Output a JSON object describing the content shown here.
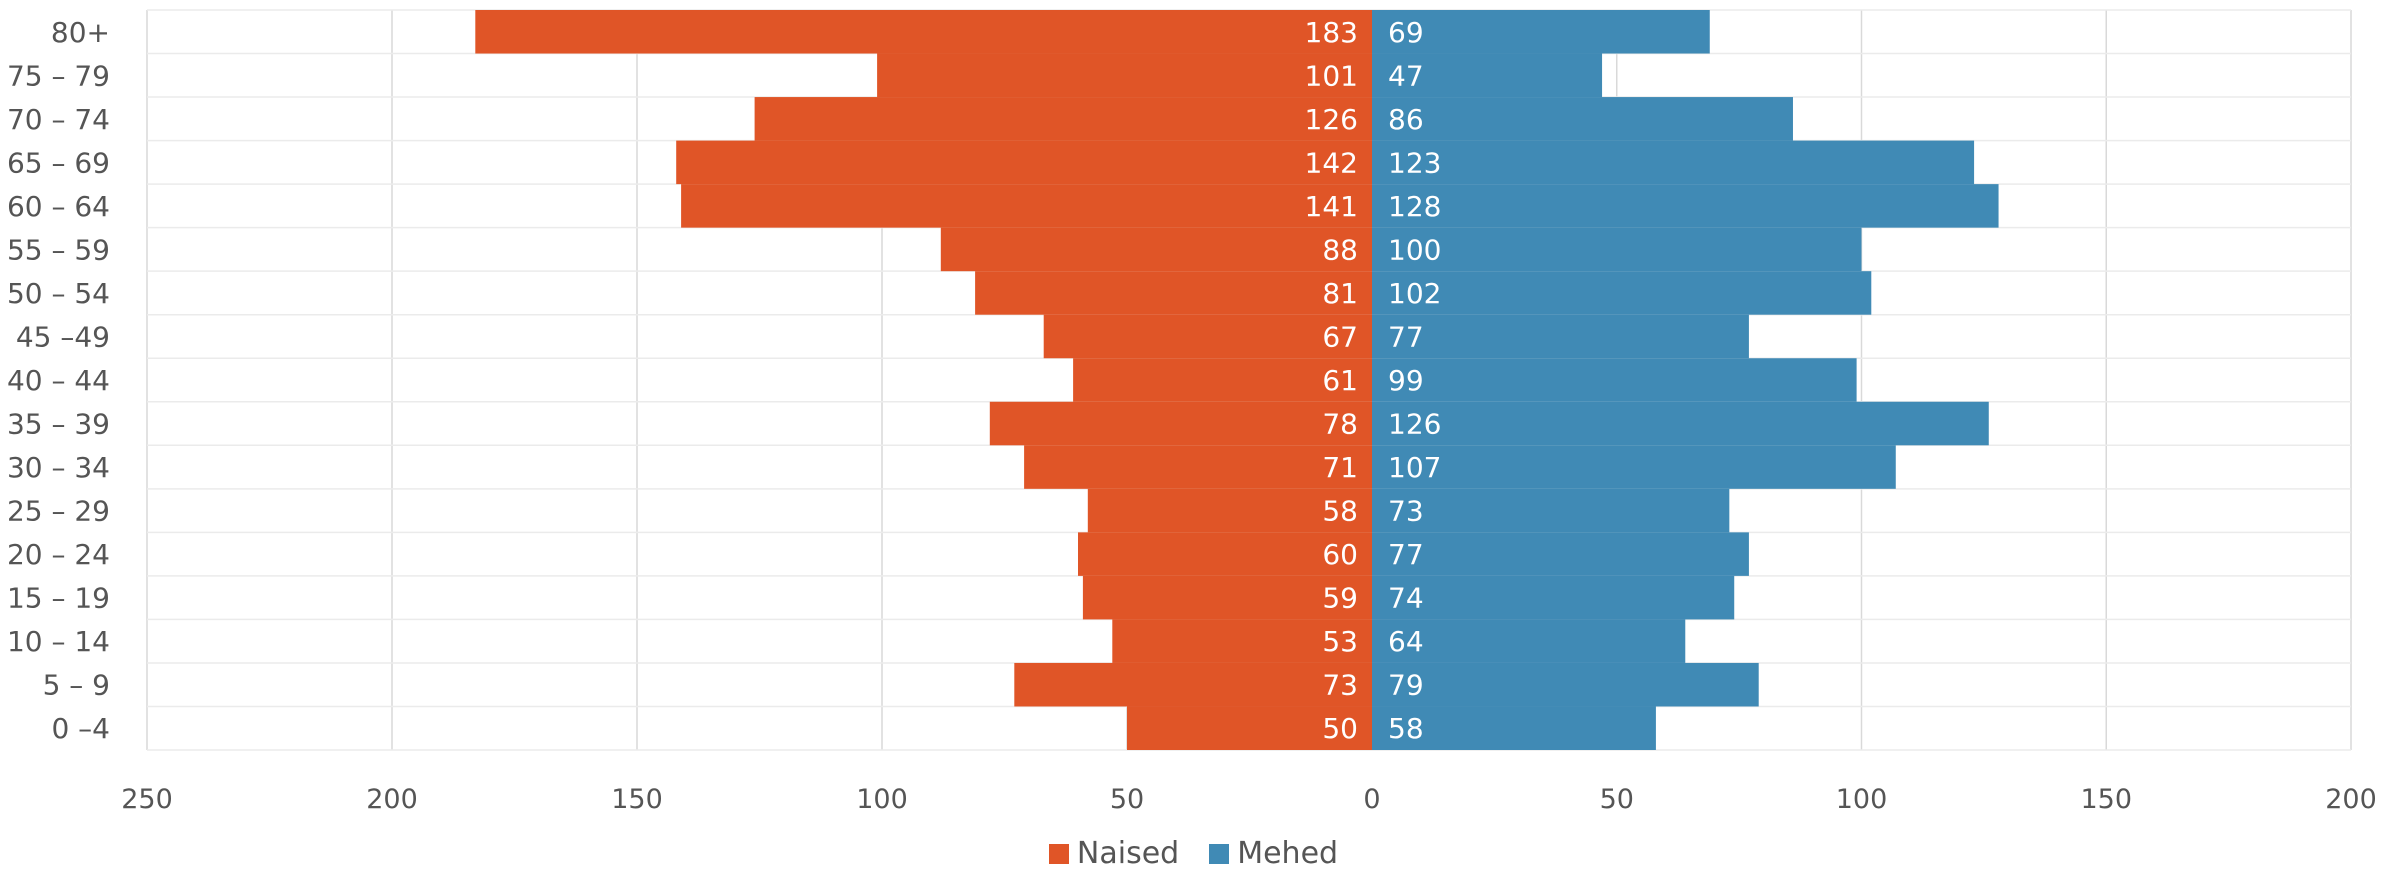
{
  "chart_data": {
    "type": "bar",
    "orientation": "horizontal-pyramid",
    "categories": [
      "80+",
      "75 – 79",
      "70 – 74",
      "65 – 69",
      "60 – 64",
      "55 – 59",
      "50 – 54",
      "45 –49",
      "40 – 44",
      "35 – 39",
      "30 – 34",
      "25 – 29",
      "20 – 24",
      "15 – 19",
      "10 – 14",
      "5 – 9",
      "0 –4"
    ],
    "series": [
      {
        "name": "Naised",
        "color": "#e05527",
        "side": "left",
        "values": [
          183,
          101,
          126,
          142,
          141,
          88,
          81,
          67,
          61,
          78,
          71,
          58,
          60,
          59,
          53,
          73,
          50
        ]
      },
      {
        "name": "Mehed",
        "color": "#408ab5",
        "side": "right",
        "values": [
          69,
          47,
          86,
          123,
          128,
          100,
          102,
          77,
          99,
          126,
          107,
          73,
          77,
          74,
          64,
          79,
          58
        ]
      }
    ],
    "x_ticks_left": [
      "250",
      "200",
      "150",
      "100",
      "50"
    ],
    "x_ticks_right": [
      "0",
      "50",
      "100",
      "150",
      "200"
    ],
    "xlim_left": [
      0,
      250
    ],
    "xlim_right": [
      0,
      200
    ],
    "title": "",
    "xlabel": "",
    "ylabel": "",
    "grid": true,
    "legend_position": "bottom-center",
    "data_labels": true
  }
}
